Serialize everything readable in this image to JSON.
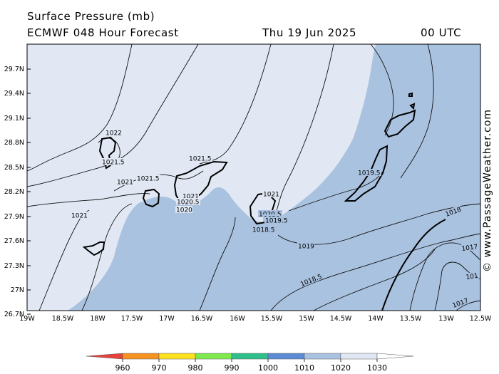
{
  "header": {
    "title": "Surface Pressure (mb)",
    "model": "ECMWF 048 Hour Forecast",
    "date": "Thu 19 Jun 2025",
    "time": "00 UTC"
  },
  "credit": "© www.PassageWeather.com",
  "axes": {
    "lat_labels": [
      "29.7N",
      "29.4N",
      "29.1N",
      "28.8N",
      "28.5N",
      "28.2N",
      "27.9N",
      "27.6N",
      "27.3N",
      "27N",
      "26.7N"
    ],
    "lon_labels": [
      "19W",
      "18.5W",
      "18W",
      "17.5W",
      "17W",
      "16.5W",
      "16W",
      "15.5W",
      "15W",
      "14.5W",
      "14W",
      "13.5W",
      "13W",
      "12.5W"
    ]
  },
  "colors": {
    "land_border": "#000000",
    "fill_1020_1030": "#e1e8f4",
    "fill_1010_1020": "#a9c2e0",
    "isobar": "#000000"
  },
  "isobar_labels": [
    {
      "id": "1022-lapalma",
      "text": "1022"
    },
    {
      "id": "1021-5-lapalma",
      "text": "1021.5"
    },
    {
      "id": "1021-5-tenerife",
      "text": "1021.5"
    },
    {
      "id": "1021-5-gomera",
      "text": "1021.5"
    },
    {
      "id": "1021-gomera",
      "text": "1021"
    },
    {
      "id": "1021-hierro",
      "text": "1021"
    },
    {
      "id": "1021-tenerife",
      "text": "1021"
    },
    {
      "id": "1020-5-tenerife",
      "text": "1020.5"
    },
    {
      "id": "1020-tenerife",
      "text": "1020"
    },
    {
      "id": "1021-grancanaria",
      "text": "1021"
    },
    {
      "id": "1020-5-grancanaria",
      "text": "1020.5"
    },
    {
      "id": "1020-grancanaria",
      "text": "1020"
    },
    {
      "id": "1019-5-grancanaria",
      "text": "1019.5"
    },
    {
      "id": "1018-5-grancanaria",
      "text": "1018.5"
    },
    {
      "id": "1019",
      "text": "1019"
    },
    {
      "id": "1019-5-fuerteventura",
      "text": "1019.5"
    },
    {
      "id": "1018-5-south",
      "text": "1018.5"
    },
    {
      "id": "1018-east",
      "text": "1018"
    },
    {
      "id": "1017-east",
      "text": "1017"
    },
    {
      "id": "1017-southeast",
      "text": "1017"
    },
    {
      "id": "101-edge",
      "text": "101"
    }
  ],
  "colorbar": {
    "labels": [
      "960",
      "970",
      "980",
      "990",
      "1000",
      "1010",
      "1020",
      "1030"
    ],
    "colors": [
      "#e8403a",
      "#f6921e",
      "#fde21e",
      "#7eea4e",
      "#2dc08a",
      "#5c8bd6",
      "#a9c2e0",
      "#e1e8f4"
    ]
  }
}
